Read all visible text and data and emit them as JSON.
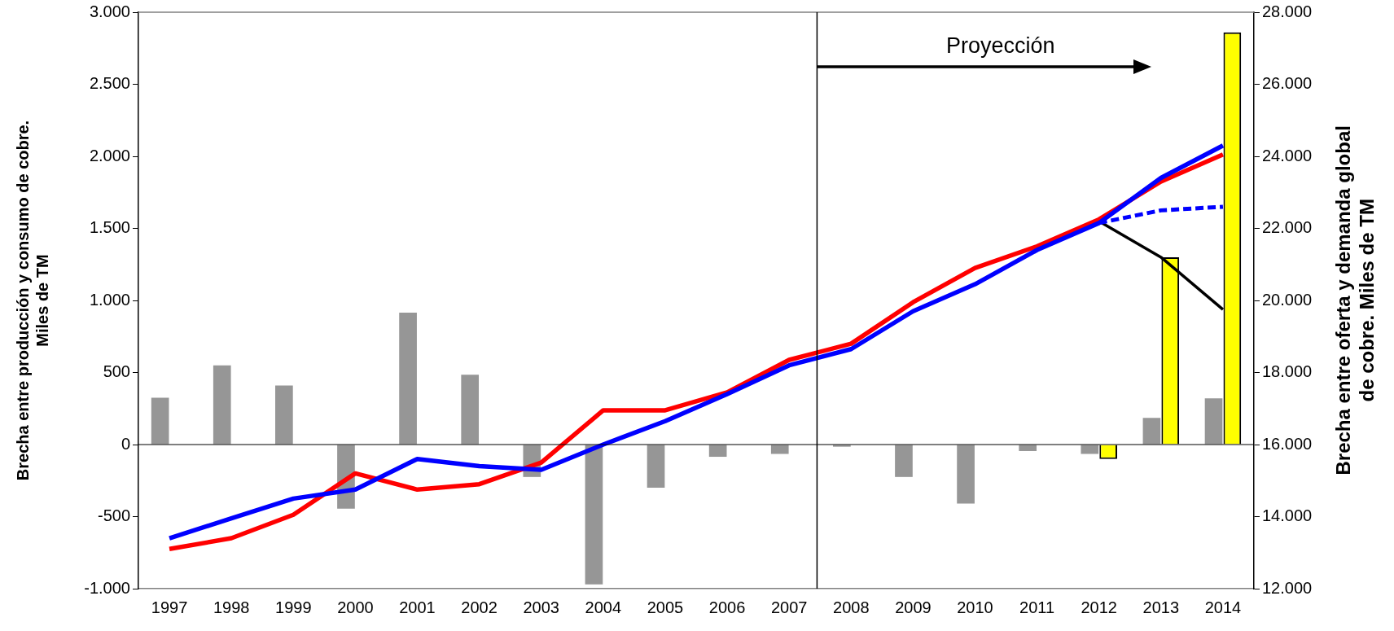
{
  "chart_data": {
    "type": "bar",
    "ylabel": "Brecha entre producción y consumo de cobre. Miles de TM",
    "y2label": "Brecha entre oferta y demanda global de cobre. Miles de TM",
    "annotations": [
      "Proyección"
    ],
    "x": [
      1997,
      1998,
      1999,
      2000,
      2001,
      2002,
      2003,
      2004,
      2005,
      2006,
      2007,
      2008,
      2009,
      2010,
      2011,
      2012,
      2013,
      2014
    ],
    "xlim": [
      1996.5,
      2014.5
    ],
    "xticks": [
      1997,
      1998,
      1999,
      2000,
      2001,
      2002,
      2003,
      2004,
      2005,
      2006,
      2007,
      2008,
      2009,
      2010,
      2011,
      2012,
      2013,
      2014
    ],
    "ylim": [
      -1000,
      3000
    ],
    "yticks": [
      {
        "value": -1000,
        "label": "-1.000"
      },
      -500,
      0,
      500,
      {
        "value": 1000,
        "label": "1.000"
      },
      {
        "value": 1500,
        "label": "1.500"
      },
      {
        "value": 2000,
        "label": "2.000"
      },
      {
        "value": 2500,
        "label": "2.500"
      },
      {
        "value": 3000,
        "label": "3.000"
      }
    ],
    "y2lim": [
      12000,
      28000
    ],
    "y2ticks": [
      {
        "value": 12000,
        "label": "12.000"
      },
      {
        "value": 14000,
        "label": "14.000"
      },
      {
        "value": 16000,
        "label": "16.000"
      },
      {
        "value": 18000,
        "label": "18.000"
      },
      {
        "value": 20000,
        "label": "20.000"
      },
      {
        "value": 22000,
        "label": "22.000"
      },
      {
        "value": 24000,
        "label": "24.000"
      },
      {
        "value": 26000,
        "label": "26.000"
      },
      {
        "value": 28000,
        "label": "28.000"
      }
    ],
    "marker": "none",
    "ref_lines": [
      {
        "axis": "x",
        "value": 2007.45,
        "color": "#000000"
      }
    ],
    "series": [
      {
        "color": "#969696",
        "values": [
          325,
          550,
          410,
          -445,
          915,
          485,
          -225,
          -970,
          -300,
          -85,
          -65,
          -15,
          -225,
          -410,
          -45,
          -65,
          185,
          320
        ]
      },
      {
        "color": "#ffff00",
        "values": [
          null,
          null,
          null,
          null,
          null,
          null,
          null,
          null,
          null,
          null,
          null,
          null,
          null,
          null,
          null,
          -100,
          1300,
          2860
        ]
      },
      {
        "type": "line",
        "axis": "y2",
        "color": "#0000ff",
        "line_style": "solid",
        "values": [
          13400,
          13950,
          14500,
          14750,
          15600,
          15400,
          15300,
          16000,
          16650,
          17400,
          18200,
          18650,
          19700,
          20450,
          21400,
          22150,
          23400,
          24300
        ]
      },
      {
        "type": "line",
        "axis": "y2",
        "color": "#ff0000",
        "line_style": "solid",
        "values": [
          13100,
          13400,
          14050,
          15200,
          14750,
          14900,
          15500,
          16950,
          16950,
          17450,
          18350,
          18800,
          19950,
          20900,
          21500,
          22250,
          23300,
          24050
        ]
      },
      {
        "type": "line",
        "axis": "y2",
        "color": "#0000ff",
        "line_style": "dashed",
        "x": [
          2012,
          2013,
          2014
        ],
        "values": [
          22150,
          22500,
          22600
        ]
      },
      {
        "type": "line",
        "axis": "y2",
        "color": "#000000",
        "line_style": "solid",
        "x": [
          2012,
          2013,
          2014
        ],
        "values": [
          22200,
          21200,
          19750
        ]
      }
    ]
  }
}
